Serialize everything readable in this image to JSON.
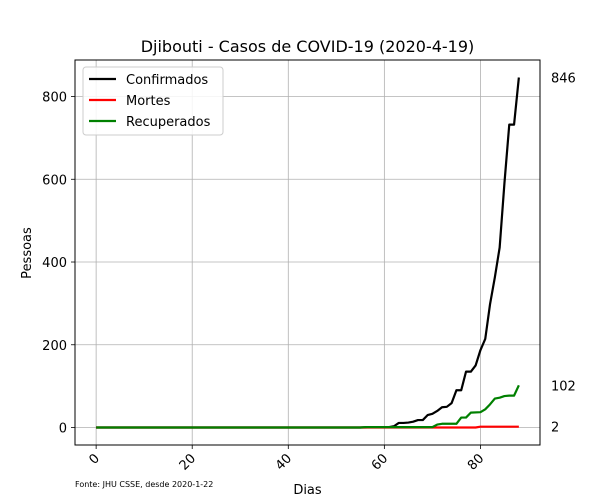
{
  "chart_data": {
    "type": "line",
    "title": "Djibouti - Casos de COVID-19 (2020-4-19)",
    "xlabel": "Dias",
    "ylabel": "Pessoas",
    "xlim": [
      -4.4,
      92.4
    ],
    "ylim": [
      -42.3,
      888.3
    ],
    "xticks": [
      0,
      20,
      40,
      60,
      80
    ],
    "yticks": [
      0,
      200,
      400,
      600,
      800
    ],
    "grid": true,
    "legend_position": "top-left",
    "source_note": "Fonte: JHU CSSE, desde 2020-1-22",
    "series": [
      {
        "name": "Confirmados",
        "color": "#000000",
        "end_label": "846",
        "points": [
          [
            0,
            0
          ],
          [
            55,
            0
          ],
          [
            60,
            1
          ],
          [
            61,
            1
          ],
          [
            62,
            3
          ],
          [
            63,
            11
          ],
          [
            64,
            11
          ],
          [
            65,
            12
          ],
          [
            66,
            14
          ],
          [
            67,
            18
          ],
          [
            68,
            18
          ],
          [
            69,
            30
          ],
          [
            70,
            33
          ],
          [
            71,
            40
          ],
          [
            72,
            49
          ],
          [
            73,
            50
          ],
          [
            74,
            59
          ],
          [
            75,
            90
          ],
          [
            76,
            90
          ],
          [
            77,
            135
          ],
          [
            78,
            135
          ],
          [
            79,
            150
          ],
          [
            80,
            187
          ],
          [
            81,
            214
          ],
          [
            82,
            298
          ],
          [
            83,
            363
          ],
          [
            84,
            435
          ],
          [
            85,
            591
          ],
          [
            86,
            732
          ],
          [
            87,
            732
          ],
          [
            88,
            846
          ]
        ]
      },
      {
        "name": "Mortes",
        "color": "#ff0000",
        "end_label": "2",
        "points": [
          [
            0,
            0
          ],
          [
            79,
            0
          ],
          [
            80,
            2
          ],
          [
            88,
            2
          ]
        ]
      },
      {
        "name": "Recuperados",
        "color": "#008000",
        "end_label": "102",
        "points": [
          [
            0,
            0
          ],
          [
            55,
            0
          ],
          [
            56,
            1
          ],
          [
            70,
            1
          ],
          [
            71,
            7
          ],
          [
            72,
            9
          ],
          [
            74,
            9
          ],
          [
            75,
            9
          ],
          [
            76,
            24
          ],
          [
            77,
            24
          ],
          [
            78,
            36
          ],
          [
            80,
            37
          ],
          [
            81,
            44
          ],
          [
            82,
            56
          ],
          [
            83,
            70
          ],
          [
            84,
            72
          ],
          [
            85,
            76
          ],
          [
            86,
            77
          ],
          [
            87,
            77
          ],
          [
            88,
            102
          ]
        ]
      }
    ]
  }
}
